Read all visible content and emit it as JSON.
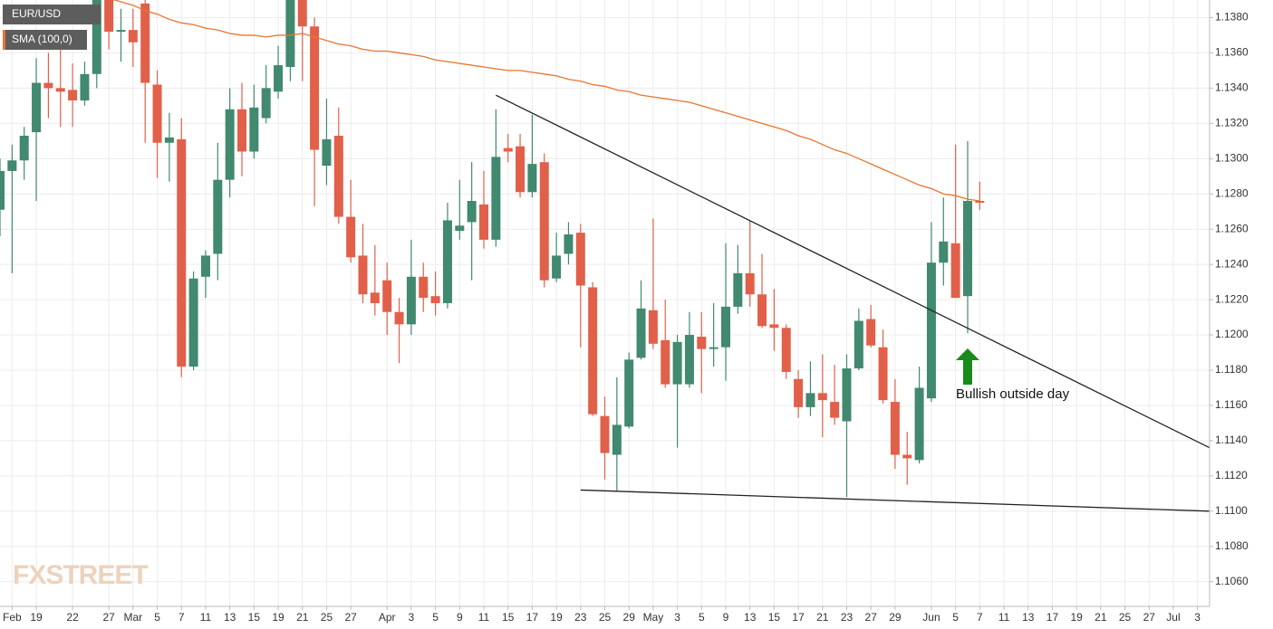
{
  "chart_data": {
    "type": "candlestick",
    "categories": [
      null,
      "Feb",
      null,
      "19",
      null,
      null,
      "22",
      null,
      null,
      "27",
      null,
      "Mar",
      null,
      "5",
      null,
      "7",
      null,
      "11",
      null,
      "13",
      null,
      "15",
      null,
      "19",
      null,
      "21",
      null,
      "25",
      null,
      "27",
      null,
      null,
      "Apr",
      null,
      "3",
      null,
      "5",
      null,
      "9",
      null,
      "11",
      null,
      "15",
      null,
      "17",
      null,
      "19",
      null,
      "23",
      null,
      "25",
      null,
      "29",
      null,
      "May",
      null,
      "3",
      null,
      "5",
      null,
      "9",
      null,
      "13",
      null,
      "15",
      null,
      "17",
      null,
      "21",
      null,
      "23",
      null,
      "27",
      null,
      "29",
      null,
      null,
      "Jun",
      null,
      "5",
      null,
      "7",
      null,
      "11",
      null,
      "13",
      null,
      "17",
      null,
      "19",
      null,
      "21",
      null,
      "25",
      null,
      "27",
      null,
      "Jul",
      null,
      "3"
    ],
    "series": [
      {
        "name": "EUR/USD",
        "up_color": "#41896f",
        "down_color": "#e1604a",
        "open": [
          1.1271,
          1.1293,
          1.1299,
          1.1315,
          1.1343,
          1.134,
          1.1339,
          1.1333,
          1.1348,
          1.1392,
          1.1372,
          1.1373,
          1.1388,
          1.1342,
          1.1309,
          1.1311,
          1.1182,
          1.1233,
          1.1246,
          1.1288,
          1.1328,
          1.1304,
          1.1323,
          1.1338,
          1.1352,
          1.1395,
          1.1375,
          1.1296,
          1.1313,
          1.1267,
          1.1245,
          1.1224,
          1.1231,
          1.1213,
          1.1206,
          1.1233,
          1.1222,
          1.1218,
          1.1259,
          1.1264,
          1.1274,
          1.1254,
          1.1306,
          1.1307,
          1.1281,
          1.1298,
          1.1232,
          1.1246,
          1.1258,
          1.1227,
          1.1154,
          1.1132,
          1.1148,
          1.1187,
          1.1214,
          1.1197,
          1.1172,
          1.1172,
          1.1199,
          1.1192,
          1.1193,
          1.1216,
          1.1235,
          1.1223,
          1.1206,
          1.1204,
          1.1175,
          1.1159,
          1.1167,
          1.1162,
          1.1151,
          1.1181,
          1.1209,
          1.1193,
          1.1162,
          1.1132,
          1.1129,
          1.1164,
          1.1241,
          1.1252,
          1.1222,
          1.1276,
          null,
          null,
          null,
          null,
          null,
          null,
          null,
          null,
          null,
          null,
          null,
          null,
          null,
          null,
          null,
          null,
          null,
          null
        ],
        "high": [
          1.13,
          1.1308,
          1.1318,
          1.1357,
          1.136,
          1.1362,
          1.1354,
          1.1355,
          1.1395,
          1.14,
          1.1385,
          1.1385,
          1.1392,
          1.135,
          1.1326,
          1.1323,
          1.1236,
          1.1248,
          1.1309,
          1.134,
          1.1343,
          1.1342,
          1.1353,
          1.1364,
          1.14,
          1.1402,
          1.138,
          1.1334,
          1.1329,
          1.1288,
          1.1263,
          1.1251,
          1.1241,
          1.1221,
          1.1254,
          1.1241,
          1.1236,
          1.1275,
          1.1288,
          1.1298,
          1.1293,
          1.1328,
          1.1314,
          1.1314,
          1.1325,
          1.1303,
          1.1258,
          1.1264,
          1.1263,
          1.123,
          1.1165,
          1.1176,
          1.119,
          1.1231,
          1.1266,
          1.122,
          1.12,
          1.1213,
          1.1213,
          1.1218,
          1.1252,
          1.1251,
          1.1265,
          1.1246,
          1.1226,
          1.1206,
          1.118,
          1.1185,
          1.1189,
          1.1183,
          1.1189,
          1.1215,
          1.1217,
          1.1203,
          1.1175,
          1.1145,
          1.1182,
          1.1264,
          1.1278,
          1.1308,
          1.131,
          1.1287,
          null,
          null,
          null,
          null,
          null,
          null,
          null,
          null,
          null,
          null,
          null,
          null,
          null,
          null,
          null,
          null,
          null,
          null
        ],
        "low": [
          1.1256,
          1.1235,
          1.1288,
          1.1276,
          1.1323,
          1.1318,
          1.1318,
          1.133,
          1.134,
          1.1362,
          1.1355,
          1.1352,
          1.1309,
          1.1289,
          1.1287,
          1.1176,
          1.118,
          1.1221,
          1.1231,
          1.1278,
          1.129,
          1.13,
          1.132,
          1.1334,
          1.1344,
          1.1344,
          1.1273,
          1.1285,
          1.1263,
          1.1241,
          1.1218,
          1.1211,
          1.12,
          1.1184,
          1.12,
          1.1213,
          1.1211,
          1.1215,
          1.1254,
          1.1231,
          1.1249,
          1.125,
          1.1298,
          1.1278,
          1.1278,
          1.1227,
          1.123,
          1.124,
          1.1193,
          1.1154,
          1.1118,
          1.1111,
          1.1147,
          1.1186,
          1.1192,
          1.117,
          1.1136,
          1.117,
          1.1167,
          1.1182,
          1.1174,
          1.1212,
          1.1216,
          1.1204,
          1.1191,
          1.1175,
          1.1153,
          1.1154,
          1.1142,
          1.1149,
          1.1108,
          1.118,
          1.1193,
          1.1161,
          1.1124,
          1.1115,
          1.1127,
          1.1162,
          1.1228,
          1.1221,
          1.1201,
          1.1271,
          null,
          null,
          null,
          null,
          null,
          null,
          null,
          null,
          null,
          null,
          null,
          null,
          null,
          null,
          null,
          null,
          null,
          null
        ],
        "close": [
          1.1293,
          1.1299,
          1.1313,
          1.1343,
          1.134,
          1.1338,
          1.1333,
          1.1348,
          1.139,
          1.1372,
          1.1373,
          1.1366,
          1.1343,
          1.1309,
          1.1312,
          1.1182,
          1.1232,
          1.1245,
          1.1288,
          1.1328,
          1.1304,
          1.1329,
          1.134,
          1.1353,
          1.1392,
          1.1375,
          1.1305,
          1.1311,
          1.1267,
          1.1244,
          1.1223,
          1.1218,
          1.1213,
          1.1206,
          1.1233,
          1.1221,
          1.1218,
          1.1265,
          1.1262,
          1.1276,
          1.1254,
          1.1301,
          1.1304,
          1.1281,
          1.1297,
          1.1231,
          1.1245,
          1.1257,
          1.1228,
          1.1155,
          1.1133,
          1.1149,
          1.1186,
          1.1215,
          1.1195,
          1.1172,
          1.1196,
          1.12,
          1.1192,
          1.1193,
          1.1216,
          1.1235,
          1.1223,
          1.1205,
          1.1204,
          1.1179,
          1.1159,
          1.1167,
          1.1163,
          1.1153,
          1.1181,
          1.1208,
          1.1194,
          1.1163,
          1.1132,
          1.113,
          1.117,
          1.1241,
          1.1253,
          1.1221,
          1.1276,
          1.1275,
          null,
          null,
          null,
          null,
          null,
          null,
          null,
          null,
          null,
          null,
          null,
          null,
          null,
          null,
          null,
          null,
          null,
          null
        ]
      },
      {
        "name": "SMA (100,0)",
        "color": "#e8752e",
        "values": [
          null,
          null,
          null,
          null,
          null,
          null,
          null,
          null,
          1.1393,
          1.1391,
          1.1389,
          1.1387,
          1.1384,
          1.1382,
          1.1379,
          1.1377,
          1.1376,
          1.1374,
          1.1373,
          1.1371,
          1.137,
          1.137,
          1.1369,
          1.137,
          1.137,
          1.1371,
          1.1369,
          1.1367,
          1.1365,
          1.1364,
          1.1362,
          1.1361,
          1.1361,
          1.136,
          1.1359,
          1.1358,
          1.1356,
          1.1355,
          1.1354,
          1.1353,
          1.1352,
          1.1351,
          1.135,
          1.135,
          1.1349,
          1.1348,
          1.1347,
          1.1345,
          1.1344,
          1.1342,
          1.1341,
          1.1339,
          1.1338,
          1.1336,
          1.1335,
          1.1334,
          1.1333,
          1.1332,
          1.133,
          1.1328,
          1.1326,
          1.1324,
          1.1322,
          1.132,
          1.1318,
          1.1316,
          1.1313,
          1.1311,
          1.1308,
          1.1305,
          1.1303,
          1.13,
          1.1297,
          1.1294,
          1.1291,
          1.1288,
          1.1285,
          1.1283,
          1.128,
          1.1279,
          1.1277,
          1.1276,
          null,
          null,
          null,
          null,
          null,
          null,
          null,
          null,
          null,
          null,
          null,
          null,
          null,
          null,
          null,
          null,
          null,
          null
        ]
      }
    ],
    "trendlines": [
      {
        "color": "#222222",
        "x": [
          41,
          100
        ],
        "y": [
          1.1336,
          1.1136
        ]
      },
      {
        "color": "#222222",
        "x": [
          48,
          100
        ],
        "y": [
          1.1112,
          1.11
        ]
      }
    ],
    "annotation": "Bullish outside day",
    "watermark": "FXSTREET",
    "ylim": [
      1.1046,
      1.139
    ],
    "yticks": [
      {
        "value": 1.106,
        "label": "1.1060"
      },
      {
        "value": 1.108,
        "label": "1.1080"
      },
      {
        "value": 1.11,
        "label": "1.1100"
      },
      {
        "value": 1.112,
        "label": "1.1120"
      },
      {
        "value": 1.114,
        "label": "1.1140"
      },
      {
        "value": 1.116,
        "label": "1.1160"
      },
      {
        "value": 1.118,
        "label": "1.1180"
      },
      {
        "value": 1.12,
        "label": "1.1200"
      },
      {
        "value": 1.122,
        "label": "1.1220"
      },
      {
        "value": 1.124,
        "label": "1.1240"
      },
      {
        "value": 1.126,
        "label": "1.1260"
      },
      {
        "value": 1.128,
        "label": "1.1280"
      },
      {
        "value": 1.13,
        "label": "1.1300"
      },
      {
        "value": 1.132,
        "label": "1.1320"
      },
      {
        "value": 1.134,
        "label": "1.1340"
      },
      {
        "value": 1.136,
        "label": "1.1360"
      },
      {
        "value": 1.138,
        "label": "1.1380"
      }
    ],
    "grid": true
  }
}
